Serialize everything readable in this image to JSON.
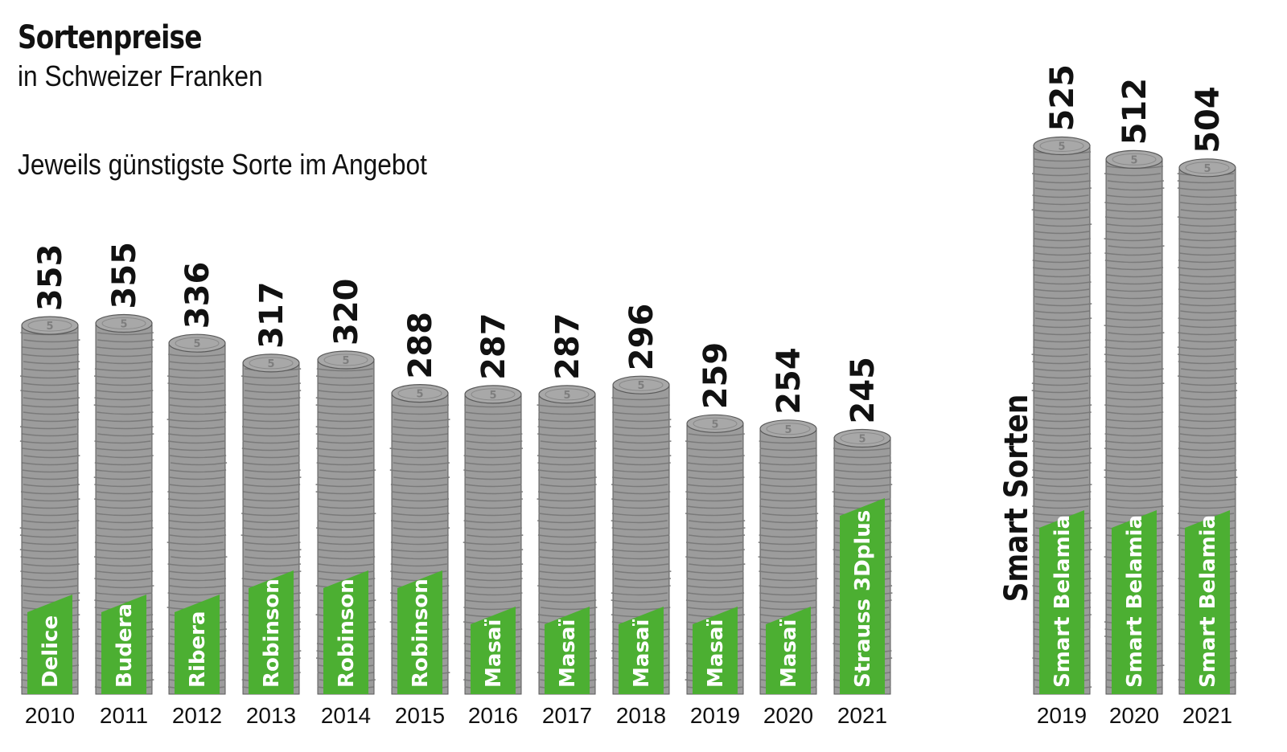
{
  "header": {
    "title": "Sortenpreise",
    "subtitle": "in Schweizer Franken",
    "caption": "Jeweils günstigste Sorte im Angebot"
  },
  "smart_group_label": "Smart Sorten",
  "coin_mark": "5",
  "colors": {
    "coin_face": "#9c9c9c",
    "coin_edge": "#7a7a7a",
    "coin_outline": "#5a5a5a",
    "label_green": "#4caf32",
    "text": "#111111"
  },
  "chart_data": {
    "type": "bar",
    "ylim": [
      0,
      525
    ],
    "series": [
      {
        "categories": [
          "2010",
          "2011",
          "2012",
          "2013",
          "2014",
          "2015",
          "2016",
          "2017",
          "2018",
          "2019",
          "2020",
          "2021"
        ],
        "values": [
          353,
          355,
          336,
          317,
          320,
          288,
          287,
          287,
          296,
          259,
          254,
          245
        ],
        "varieties": [
          "Delice",
          "Budera",
          "Ribera",
          "Robinson",
          "Robinson",
          "Robinson",
          "Masaï",
          "Masaï",
          "Masaï",
          "Masaï",
          "Masaï",
          "Strauss 3Dplus"
        ]
      },
      {
        "name": "Smart Sorten",
        "categories": [
          "2019",
          "2020",
          "2021"
        ],
        "values": [
          525,
          512,
          504
        ],
        "varieties": [
          "Smart Belamia",
          "Smart Belamia",
          "Smart Belamia"
        ]
      }
    ]
  }
}
